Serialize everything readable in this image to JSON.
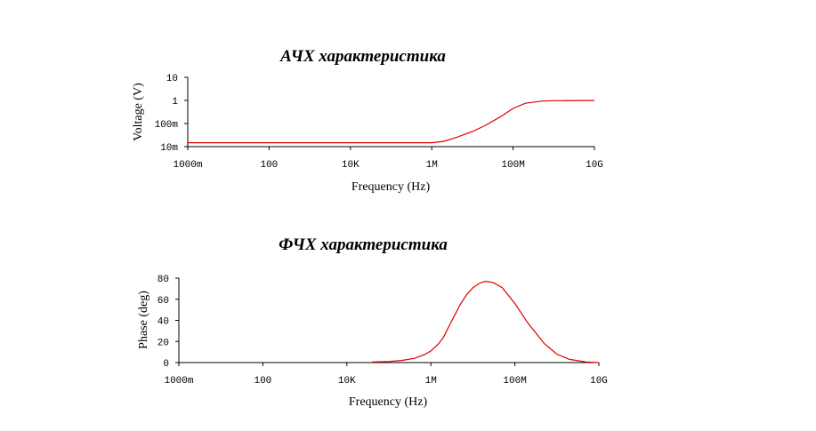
{
  "chart_data": [
    {
      "type": "line",
      "title": "АЧХ характеристика",
      "xlabel": "Frequency (Hz)",
      "ylabel": "Voltage (V)",
      "xscale": "log",
      "yscale": "log",
      "xlim": [
        1,
        10000000000
      ],
      "ylim": [
        0.01,
        10
      ],
      "xticks": [
        {
          "value": 1,
          "label": "1000m"
        },
        {
          "value": 100,
          "label": "100"
        },
        {
          "value": 10000,
          "label": "10K"
        },
        {
          "value": 1000000,
          "label": "1M"
        },
        {
          "value": 100000000,
          "label": "100M"
        },
        {
          "value": 10000000000,
          "label": "10G"
        }
      ],
      "yticks": [
        {
          "value": 0.01,
          "label": "10m"
        },
        {
          "value": 0.1,
          "label": "100m"
        },
        {
          "value": 1,
          "label": "1"
        },
        {
          "value": 10,
          "label": "10"
        }
      ],
      "color": "#dd0000",
      "series": [
        {
          "x": [
            1,
            100,
            10000,
            1000000,
            2000000,
            4000000,
            10000000,
            20000000,
            50000000,
            100000000,
            200000000,
            500000000,
            1000000000,
            10000000000
          ],
          "y": [
            0.0147,
            0.0147,
            0.0147,
            0.0147,
            0.017,
            0.025,
            0.045,
            0.08,
            0.2,
            0.45,
            0.75,
            0.93,
            0.97,
            1.0
          ]
        }
      ]
    },
    {
      "type": "line",
      "title": "ФЧХ характеристика",
      "xlabel": "Frequency (Hz)",
      "ylabel": "Phase (deg)",
      "xscale": "log",
      "xlim": [
        1,
        10000000000
      ],
      "ylim": [
        0,
        80
      ],
      "xticks": [
        {
          "value": 1,
          "label": "1000m"
        },
        {
          "value": 100,
          "label": "100"
        },
        {
          "value": 10000,
          "label": "10K"
        },
        {
          "value": 1000000,
          "label": "1M"
        },
        {
          "value": 100000000,
          "label": "100M"
        },
        {
          "value": 10000000000,
          "label": "10G"
        }
      ],
      "yticks": [
        {
          "value": 0,
          "label": "0"
        },
        {
          "value": 20,
          "label": "20"
        },
        {
          "value": 40,
          "label": "40"
        },
        {
          "value": 60,
          "label": "60"
        },
        {
          "value": 80,
          "label": "80"
        }
      ],
      "color": "#dd0000",
      "series": [
        {
          "x": [
            40000,
            100000,
            200000,
            400000,
            700000,
            1000000,
            1500000,
            2000000,
            3000000,
            5000000,
            7000000,
            10000000,
            15000000,
            20000000,
            30000000,
            50000000,
            100000000,
            200000000,
            500000000,
            1000000000,
            2000000000,
            5000000000,
            10000000000
          ],
          "y": [
            0.5,
            1,
            2,
            4,
            7.5,
            11,
            17.5,
            24,
            38,
            55,
            64,
            71,
            75.5,
            77,
            76,
            71,
            56,
            38,
            18,
            8,
            3,
            0.5,
            0
          ]
        }
      ]
    }
  ]
}
